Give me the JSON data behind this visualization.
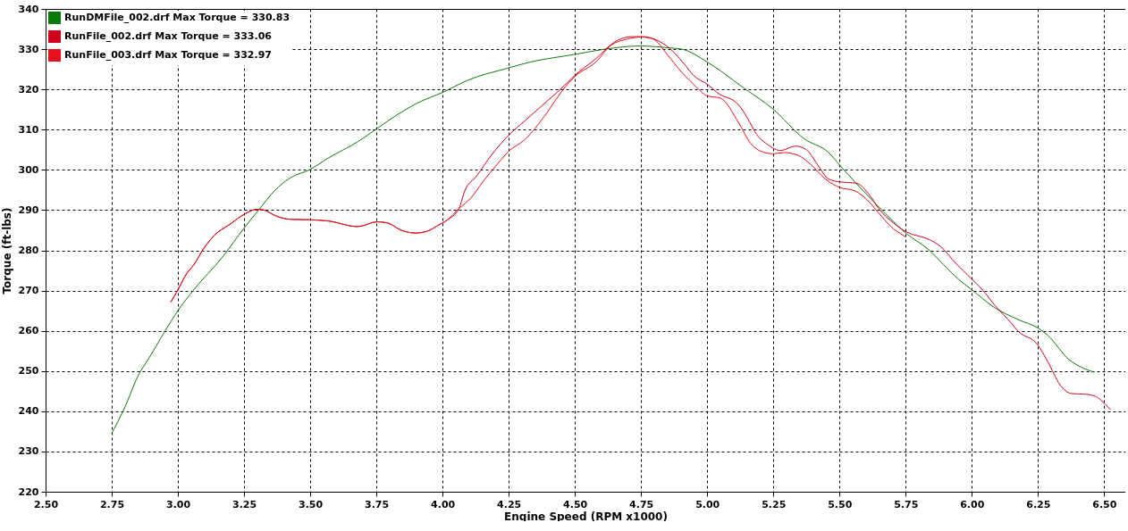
{
  "chart_data": {
    "type": "line",
    "xlabel": "Engine Speed (RPM x1000)",
    "ylabel": "Torque (ft-lbs)",
    "xlim": [
      2.5,
      6.58
    ],
    "ylim": [
      220,
      340
    ],
    "xticks": [
      {
        "value": 2.5,
        "label": "2.50"
      },
      {
        "value": 2.75,
        "label": "2.75"
      },
      {
        "value": 3.0,
        "label": "3.00"
      },
      {
        "value": 3.25,
        "label": "3.25"
      },
      {
        "value": 3.5,
        "label": "3.50"
      },
      {
        "value": 3.75,
        "label": "3.75"
      },
      {
        "value": 4.0,
        "label": "4.00"
      },
      {
        "value": 4.25,
        "label": "4.25"
      },
      {
        "value": 4.5,
        "label": "4.50"
      },
      {
        "value": 4.75,
        "label": "4.75"
      },
      {
        "value": 5.0,
        "label": "5.00"
      },
      {
        "value": 5.25,
        "label": "5.25"
      },
      {
        "value": 5.5,
        "label": "5.50"
      },
      {
        "value": 5.75,
        "label": "5.75"
      },
      {
        "value": 6.0,
        "label": "6.00"
      },
      {
        "value": 6.25,
        "label": "6.25"
      },
      {
        "value": 6.5,
        "label": "6.50"
      }
    ],
    "yticks": [
      220,
      230,
      240,
      250,
      260,
      270,
      280,
      290,
      300,
      310,
      320,
      330,
      340
    ],
    "grid": true,
    "legend": "top left",
    "marker": "none",
    "line_style": "solid",
    "series": [
      {
        "name": "RunDMFile_002.drf Max Torque = 330.83",
        "color": "#0b7a0b",
        "x": [
          2.75,
          2.794,
          2.859,
          2.881,
          2.952,
          3.0,
          3.06,
          3.168,
          3.252,
          3.306,
          3.365,
          3.427,
          3.5,
          3.567,
          3.68,
          3.753,
          3.792,
          3.905,
          4.002,
          4.096,
          4.242,
          4.332,
          4.5,
          4.613,
          4.748,
          4.86,
          4.905,
          5.0,
          5.051,
          5.141,
          5.197,
          5.249,
          5.367,
          5.457,
          5.502,
          5.558,
          5.659,
          5.752,
          5.838,
          5.894,
          5.95,
          6.0,
          6.085,
          6.175,
          6.252,
          6.288,
          6.366,
          6.422,
          6.462
        ],
        "values": [
          234.5,
          240.2,
          250,
          252.2,
          260,
          265,
          270.2,
          278.3,
          285.7,
          290.1,
          294.8,
          298.1,
          300.1,
          302.9,
          307,
          310.3,
          312.1,
          316.6,
          319.3,
          322.3,
          325.2,
          326.8,
          328.7,
          330,
          330.8,
          330.3,
          330,
          326.8,
          324.6,
          320.2,
          317.7,
          315.1,
          307.7,
          304.4,
          301.1,
          297,
          290.1,
          284.2,
          280.1,
          276.4,
          272.8,
          270.2,
          265.8,
          262.8,
          260.6,
          258.8,
          252.9,
          250.7,
          249.7
        ]
      },
      {
        "name": "RunFile_002.drf Max Torque = 333.06",
        "color": "#d0021b",
        "x": [
          2.974,
          3.0,
          3.033,
          3.06,
          3.094,
          3.139,
          3.195,
          3.252,
          3.297,
          3.32,
          3.376,
          3.427,
          3.5,
          3.567,
          3.68,
          3.753,
          3.792,
          3.848,
          3.899,
          3.944,
          3.983,
          4.017,
          4.062,
          4.084,
          4.129,
          4.185,
          4.253,
          4.309,
          4.399,
          4.466,
          4.5,
          4.579,
          4.646,
          4.714,
          4.759,
          4.804,
          4.86,
          4.917,
          4.948,
          5.0,
          5.04,
          5.118,
          5.152,
          5.187,
          5.231,
          5.277,
          5.333,
          5.373,
          5.423,
          5.457,
          5.502,
          5.563,
          5.614,
          5.648,
          5.704,
          5.752,
          5.838,
          5.883,
          5.939,
          5.996,
          6.04,
          6.085,
          6.152,
          6.175,
          6.248,
          6.288,
          6.333,
          6.377,
          6.434,
          6.467,
          6.523
        ],
        "values": [
          267.2,
          270.2,
          274.2,
          276.4,
          280.1,
          283.8,
          286.4,
          289,
          290.2,
          290.1,
          288.4,
          287.7,
          287.6,
          287.3,
          285.9,
          287.1,
          286.8,
          284.9,
          284.3,
          284.8,
          286.2,
          287.5,
          290.4,
          294.8,
          298.5,
          303.7,
          308.8,
          312.1,
          317.3,
          321.3,
          323.5,
          327.6,
          331.6,
          333.1,
          333.1,
          332.4,
          330.1,
          326,
          323.5,
          321.3,
          319.1,
          316.2,
          312.9,
          308.8,
          306.2,
          304.8,
          305.9,
          305.1,
          300.7,
          297.8,
          297,
          296.7,
          293.7,
          290.4,
          286.8,
          284.6,
          282.7,
          280.9,
          276.8,
          273.1,
          270.2,
          266.5,
          261.7,
          259.9,
          256.6,
          252.2,
          246.6,
          244.4,
          244.2,
          243.7,
          240.4
        ]
      },
      {
        "name": "RunFile_003.drf Max Torque = 332.97",
        "color": "#e8101c",
        "x": [
          2.974,
          3.0,
          3.033,
          3.06,
          3.094,
          3.139,
          3.195,
          3.252,
          3.297,
          3.32,
          3.376,
          3.427,
          3.5,
          3.567,
          3.68,
          3.753,
          3.792,
          3.848,
          3.899,
          3.944,
          3.983,
          4.017,
          4.062,
          4.107,
          4.152,
          4.208,
          4.253,
          4.309,
          4.388,
          4.455,
          4.5,
          4.579,
          4.635,
          4.691,
          4.748,
          4.793,
          4.849,
          4.894,
          4.948,
          5.0,
          5.051,
          5.118,
          5.164,
          5.197,
          5.249,
          5.29,
          5.344,
          5.389,
          5.445,
          5.502,
          5.558,
          5.614,
          5.648,
          5.693,
          5.749
        ],
        "values": [
          267.2,
          270.2,
          274.2,
          276.4,
          280.1,
          283.8,
          286.4,
          289,
          290.2,
          290.1,
          288.4,
          287.7,
          287.6,
          287.3,
          285.9,
          287.1,
          286.8,
          284.9,
          284.3,
          284.8,
          286.2,
          287.5,
          290.4,
          293,
          297,
          301.5,
          304.8,
          307.4,
          313.6,
          319.9,
          323.2,
          326.8,
          330.9,
          332.4,
          333,
          332.6,
          328.7,
          325,
          321.3,
          318.4,
          317.8,
          311.8,
          306.6,
          304.8,
          304,
          304.3,
          303.6,
          301.5,
          297.8,
          295.6,
          294.8,
          291.9,
          289.3,
          286,
          283.4
        ]
      }
    ]
  }
}
